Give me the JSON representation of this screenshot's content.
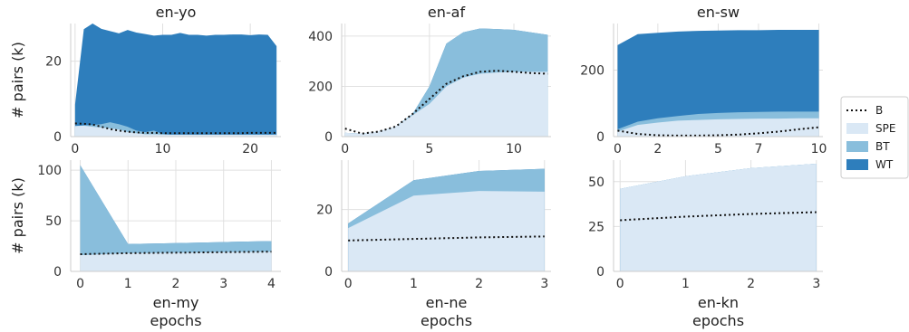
{
  "colors": {
    "B": "#111111",
    "SPE": "#dae8f5",
    "BT": "#89bedc",
    "WT": "#2e7ebc"
  },
  "legend": {
    "entries": [
      "B",
      "SPE",
      "BT",
      "WT"
    ],
    "placement": "center-right"
  },
  "chart_data": [
    {
      "type": "area",
      "title": "en-yo",
      "xlabel": "",
      "ylabel": "# pairs (k)",
      "xlim": [
        -0.5,
        23.5
      ],
      "ylim": [
        0,
        30
      ],
      "xticks": [
        0,
        10,
        20
      ],
      "yticks": [
        0,
        20
      ],
      "x": [
        0,
        1,
        2,
        3,
        4,
        5,
        6,
        7,
        8,
        9,
        10,
        11,
        12,
        13,
        14,
        15,
        16,
        17,
        18,
        19,
        20,
        21,
        22,
        23
      ],
      "B": [
        3.5,
        3.4,
        3.2,
        2.6,
        2.0,
        1.6,
        1.3,
        1.1,
        1.0,
        1.0,
        0.9,
        0.9,
        0.9,
        0.9,
        0.9,
        0.9,
        0.9,
        0.9,
        0.9,
        0.9,
        1.0,
        1.0,
        1.0,
        1.0
      ],
      "SPE": [
        2.8,
        2.9,
        2.6,
        2.4,
        2.2,
        1.9,
        1.2,
        0.9,
        0.6,
        0.6,
        0.5,
        0.5,
        0.5,
        0.5,
        0.5,
        0.5,
        0.5,
        0.5,
        0.5,
        0.5,
        0.5,
        0.5,
        0.5,
        0.5
      ],
      "BT": [
        2.8,
        3.0,
        3.1,
        3.3,
        3.8,
        3.3,
        2.6,
        1.6,
        1.2,
        1.6,
        0.7,
        0.5,
        0.5,
        0.5,
        0.5,
        0.5,
        0.5,
        0.5,
        0.5,
        0.5,
        0.5,
        0.5,
        0.5,
        0.5
      ],
      "WT": [
        8.5,
        28.5,
        30.0,
        28.6,
        28.0,
        27.4,
        28.3,
        27.6,
        27.2,
        26.8,
        27.0,
        27.0,
        27.5,
        27.0,
        27.0,
        26.8,
        27.0,
        27.0,
        27.1,
        27.1,
        26.9,
        27.1,
        27.0,
        24.0
      ]
    },
    {
      "type": "area",
      "title": "en-af",
      "xlabel": "",
      "ylabel": "",
      "xlim": [
        -0.2,
        12.2
      ],
      "ylim": [
        0,
        450
      ],
      "xticks": [
        0,
        5,
        10
      ],
      "xtick_labels": [
        "0",
        "5",
        "10"
      ],
      "yticks": [
        0,
        200,
        400
      ],
      "x": [
        0,
        1,
        2,
        3,
        4,
        5,
        6,
        7,
        8,
        9,
        10,
        11,
        12
      ],
      "B": [
        32,
        12,
        20,
        40,
        90,
        150,
        210,
        240,
        258,
        262,
        258,
        253,
        250
      ],
      "SPE": [
        15,
        12,
        20,
        40,
        85,
        130,
        200,
        235,
        250,
        255,
        258,
        258,
        258
      ],
      "BT": [
        15,
        12,
        20,
        40,
        90,
        200,
        370,
        415,
        430,
        428,
        425,
        415,
        405
      ],
      "WT": [
        15,
        12,
        20,
        40,
        90,
        200,
        370,
        415,
        430,
        428,
        425,
        415,
        405
      ]
    },
    {
      "type": "area",
      "title": "en-sw",
      "xlabel": "",
      "ylabel": "",
      "xlim": [
        -0.2,
        10.2
      ],
      "ylim": [
        0,
        340
      ],
      "xticks": [
        0,
        2,
        5,
        7,
        10
      ],
      "yticks": [
        0,
        200
      ],
      "x": [
        0,
        1,
        2,
        3,
        4,
        5,
        6,
        7,
        8,
        9,
        10
      ],
      "B": [
        18,
        8,
        4,
        3,
        3,
        4,
        6,
        10,
        15,
        22,
        28
      ],
      "SPE": [
        15,
        35,
        42,
        48,
        50,
        52,
        53,
        54,
        54,
        55,
        55
      ],
      "BT": [
        22,
        45,
        55,
        62,
        68,
        71,
        73,
        74,
        75,
        75,
        75
      ],
      "WT": [
        275,
        308,
        312,
        316,
        318,
        319,
        320,
        320,
        321,
        321,
        321
      ]
    },
    {
      "type": "area",
      "title": "",
      "xlabel": "en-my\nepochs",
      "ylabel": "# pairs (k)",
      "xlim": [
        -0.2,
        4.2
      ],
      "ylim": [
        0,
        110
      ],
      "xticks": [
        0,
        1,
        2,
        3,
        4
      ],
      "yticks": [
        0,
        50,
        100
      ],
      "x": [
        0,
        1,
        2,
        3,
        4
      ],
      "B": [
        17,
        18,
        18.5,
        19,
        19.5
      ],
      "SPE": [
        16,
        18,
        18.5,
        19,
        19.5
      ],
      "BT": [
        105,
        27,
        28,
        29,
        30
      ],
      "WT": [
        105,
        27,
        28,
        29,
        30
      ]
    },
    {
      "type": "area",
      "title": "",
      "xlabel": "en-ne\nepochs",
      "ylabel": "",
      "xlim": [
        -0.1,
        3.1
      ],
      "ylim": [
        0,
        36
      ],
      "xticks": [
        0,
        1,
        2,
        3
      ],
      "yticks": [
        0,
        20
      ],
      "x": [
        0,
        1,
        2,
        3
      ],
      "B": [
        10,
        10.5,
        11,
        11.3
      ],
      "SPE": [
        14,
        24.5,
        26,
        25.8
      ],
      "BT": [
        15.5,
        29.5,
        32.5,
        33.2
      ],
      "WT": [
        15.5,
        29.5,
        32.5,
        33.2
      ]
    },
    {
      "type": "area",
      "title": "",
      "xlabel": "en-kn\nepochs",
      "ylabel": "",
      "xlim": [
        -0.1,
        3.1
      ],
      "ylim": [
        0,
        62
      ],
      "xticks": [
        0,
        1,
        2,
        3
      ],
      "yticks": [
        0,
        25,
        50
      ],
      "x": [
        0,
        1,
        2,
        3
      ],
      "B": [
        28.5,
        30.5,
        32,
        33
      ],
      "SPE": [
        46,
        53,
        57.5,
        60
      ],
      "BT": [
        46,
        53,
        57.5,
        60
      ],
      "WT": [
        46,
        53,
        57.5,
        60
      ]
    }
  ]
}
